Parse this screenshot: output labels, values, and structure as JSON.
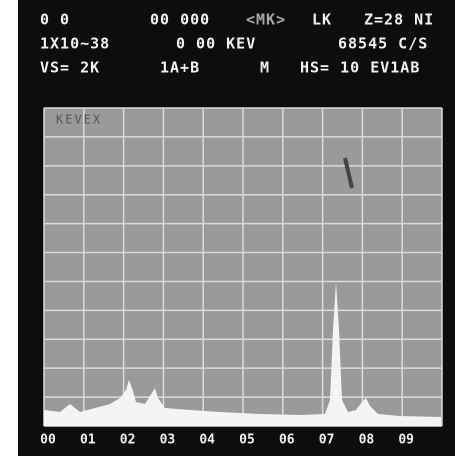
{
  "header": {
    "line1": [
      "0 0",
      "00 000",
      "<MK>",
      "LK",
      "Z=28 NI"
    ],
    "line2": [
      "1X10~38",
      "0 00 KEV",
      "68545 C/S"
    ],
    "line3": [
      "VS= 2K",
      "1A+B",
      "M",
      "HS= 10 EV1AB"
    ]
  },
  "screen": {
    "label": "KEVEX"
  },
  "x_axis": {
    "labels": [
      "00",
      "01",
      "02",
      "03",
      "04",
      "05",
      "06",
      "07",
      "08",
      "09"
    ]
  }
}
